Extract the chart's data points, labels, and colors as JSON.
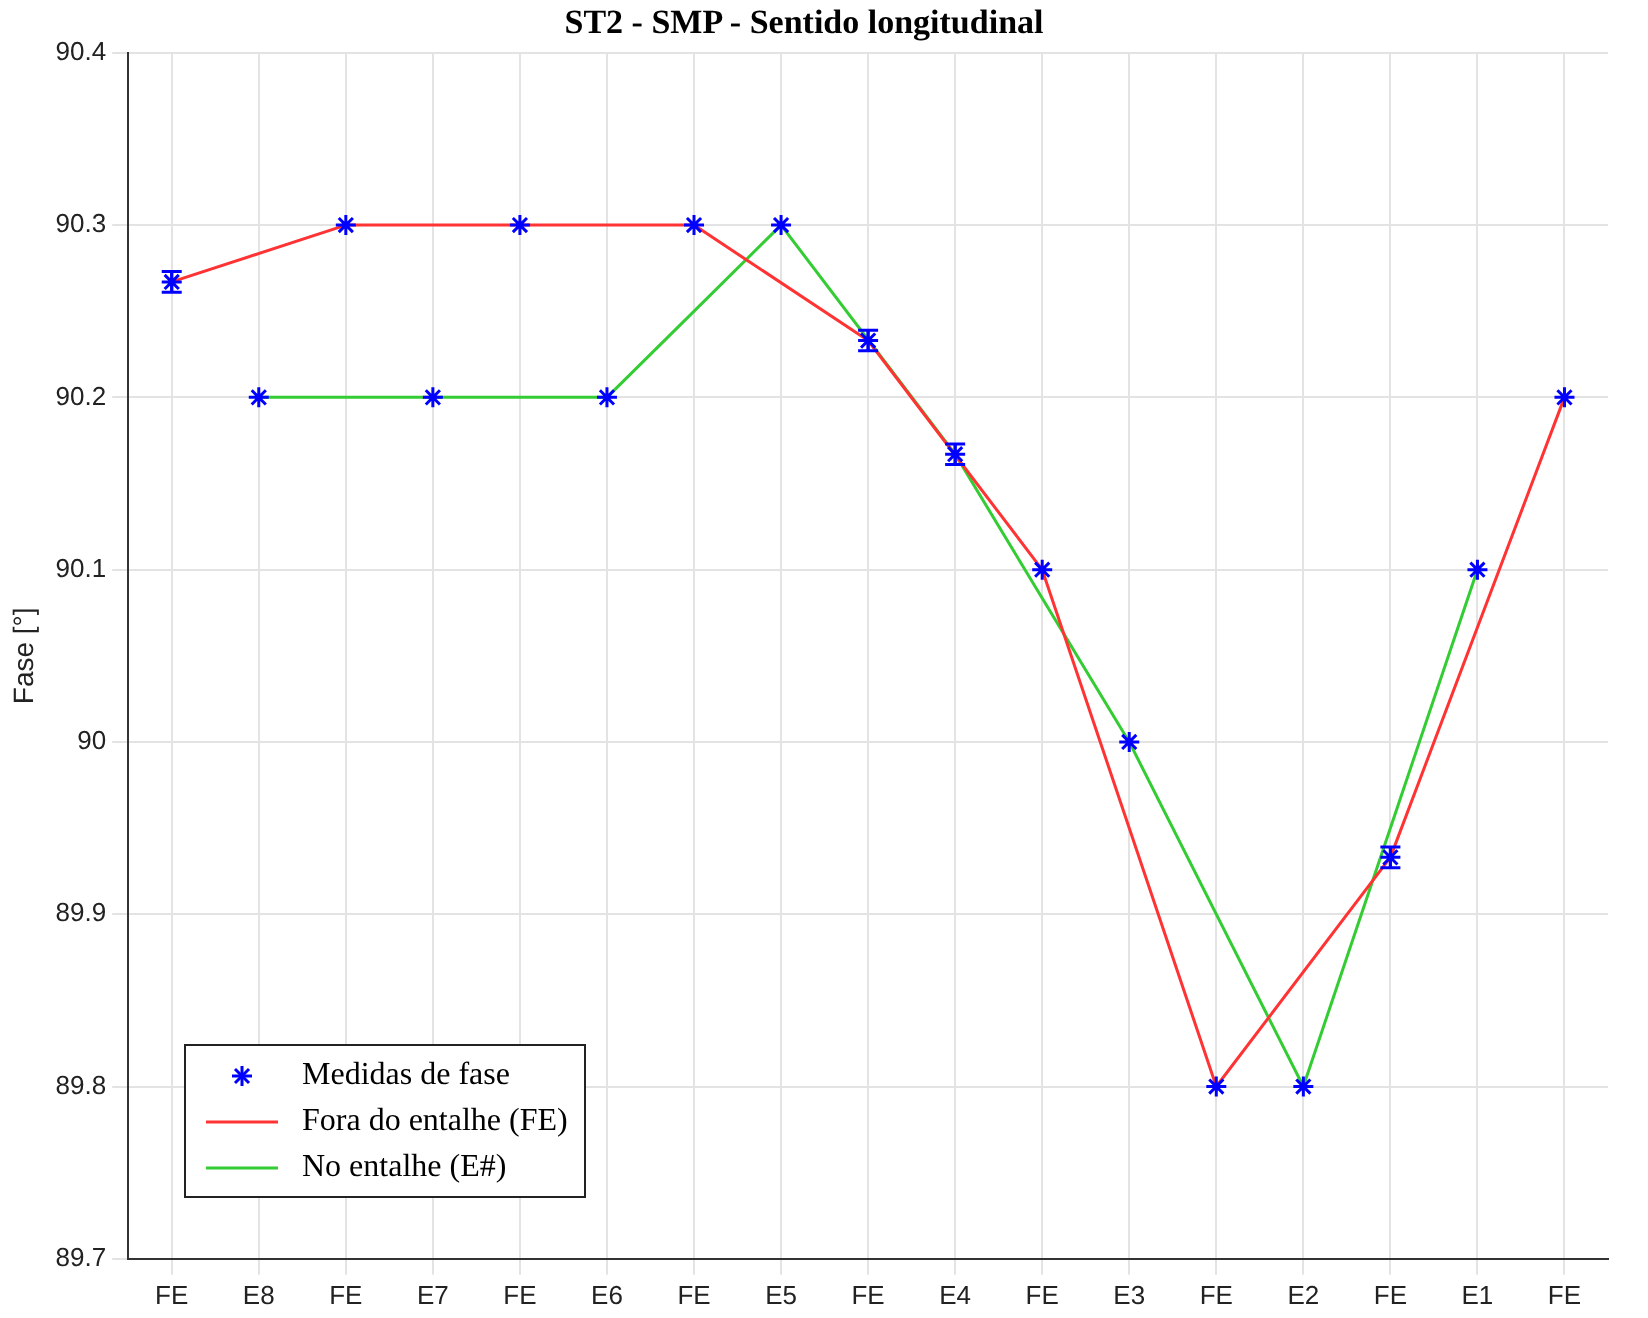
{
  "chart_data": {
    "type": "line",
    "title": "ST2 - SMP - Sentido longitudinal",
    "ylabel": "Fase [°]",
    "categories": [
      "FE",
      "E8",
      "FE",
      "E7",
      "FE",
      "E6",
      "FE",
      "E5",
      "FE",
      "E4",
      "FE",
      "E3",
      "FE",
      "E2",
      "FE",
      "E1",
      "FE"
    ],
    "ylim": [
      89.7,
      90.4
    ],
    "yticks": [
      89.7,
      89.8,
      89.9,
      90,
      90.1,
      90.2,
      90.3,
      90.4
    ],
    "grid": true,
    "legend": "bottom left",
    "series": [
      {
        "name": "Medidas de fase",
        "type": "scatter",
        "marker": "cross",
        "color": "#0000ff",
        "values": [
          90.267,
          90.2,
          90.3,
          90.2,
          90.3,
          90.2,
          90.3,
          90.3,
          90.233,
          90.167,
          90.1,
          90.0,
          89.8,
          89.8,
          89.933,
          90.1,
          90.2
        ],
        "errors": [
          0.006,
          null,
          null,
          null,
          null,
          null,
          null,
          null,
          0.006,
          0.006,
          null,
          null,
          null,
          null,
          0.006,
          null,
          null
        ]
      },
      {
        "name": "Fora do entalhe (FE)",
        "type": "line",
        "color": "#ff3333",
        "values": [
          90.267,
          null,
          90.3,
          null,
          90.3,
          null,
          90.3,
          null,
          90.233,
          null,
          90.1,
          null,
          89.8,
          null,
          89.933,
          null,
          90.2
        ]
      },
      {
        "name": "No entalhe (E#)",
        "type": "line",
        "color": "#33cc33",
        "values": [
          null,
          90.2,
          null,
          90.2,
          null,
          90.2,
          null,
          90.3,
          null,
          90.167,
          null,
          90.0,
          null,
          89.8,
          null,
          90.1,
          null
        ]
      }
    ]
  }
}
